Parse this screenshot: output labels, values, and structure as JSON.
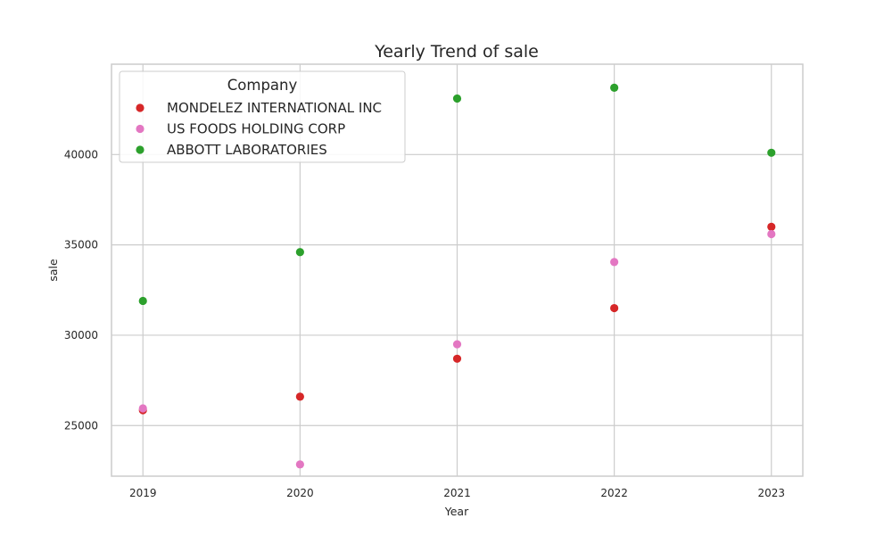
{
  "chart_data": {
    "type": "scatter",
    "title": "Yearly Trend of sale",
    "xlabel": "Year",
    "ylabel": "sale",
    "x": [
      2019,
      2020,
      2021,
      2022,
      2023
    ],
    "xlim": [
      2018.8,
      2023.2
    ],
    "ylim": [
      22200,
      45000
    ],
    "yticks": [
      25000,
      30000,
      35000,
      40000
    ],
    "grid": true,
    "legend": {
      "title": "Company",
      "placement": "top-left"
    },
    "series": [
      {
        "name": "MONDELEZ INTERNATIONAL INC",
        "color": "#d62728",
        "values": [
          25850,
          26600,
          28700,
          31500,
          36000
        ]
      },
      {
        "name": "US FOODS HOLDING CORP",
        "color": "#e377c2",
        "values": [
          25950,
          22850,
          29500,
          34050,
          35600
        ]
      },
      {
        "name": "ABBOTT LABORATORIES",
        "color": "#2ca02c",
        "values": [
          31900,
          34600,
          43100,
          43700,
          40100
        ]
      }
    ]
  }
}
